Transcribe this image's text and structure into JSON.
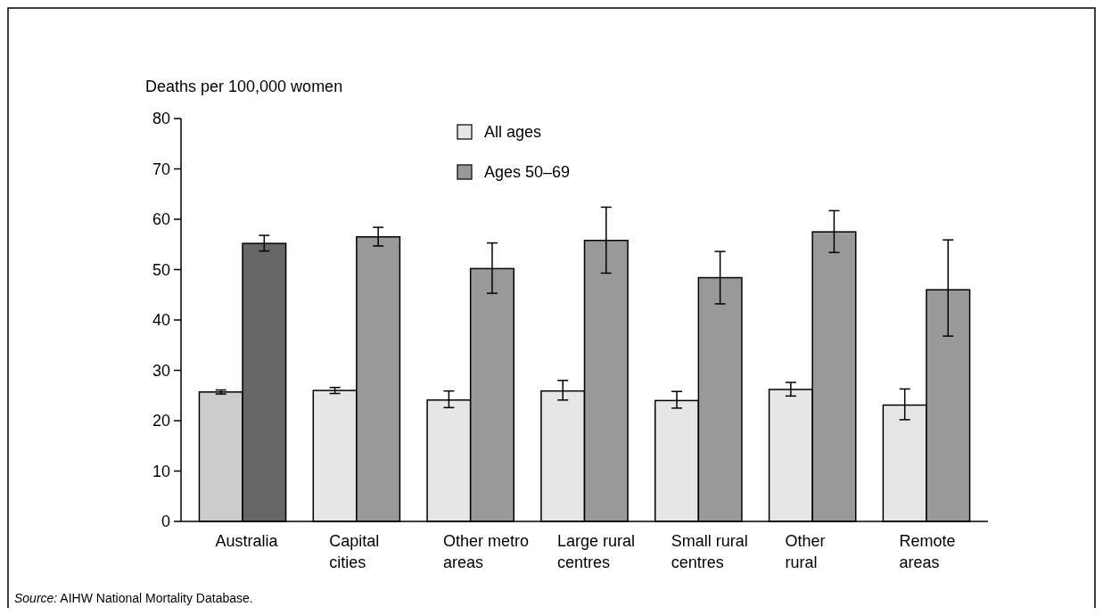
{
  "chart_data": {
    "type": "bar",
    "ylabel": "Deaths per 100,000 women",
    "categories": [
      "Australia",
      "Capital\ncities",
      "Other metro\nareas",
      "Large rural\ncentres",
      "Small rural\ncentres",
      "Other\nrural",
      "Remote\nareas"
    ],
    "series": [
      {
        "name": "All ages",
        "color": "#e6e6e6",
        "colors": [
          "#cccccc",
          "#e6e6e6",
          "#e6e6e6",
          "#e6e6e6",
          "#e6e6e6",
          "#e6e6e6",
          "#e6e6e6"
        ],
        "values": [
          25.7,
          26.0,
          24.1,
          25.9,
          24.0,
          26.2,
          23.1
        ],
        "errors": [
          [
            25.3,
            26.1
          ],
          [
            25.4,
            26.6
          ],
          [
            22.6,
            25.9
          ],
          [
            24.1,
            28.0
          ],
          [
            22.5,
            25.8
          ],
          [
            24.9,
            27.6
          ],
          [
            20.2,
            26.3
          ]
        ]
      },
      {
        "name": "Ages 50–69",
        "color": "#999999",
        "colors": [
          "#666666",
          "#999999",
          "#999999",
          "#999999",
          "#999999",
          "#999999",
          "#999999"
        ],
        "values": [
          55.2,
          56.5,
          50.2,
          55.8,
          48.4,
          57.5,
          46.0
        ],
        "errors": [
          [
            53.7,
            56.8
          ],
          [
            54.7,
            58.4
          ],
          [
            45.3,
            55.3
          ],
          [
            49.3,
            62.4
          ],
          [
            43.2,
            53.6
          ],
          [
            53.4,
            61.7
          ],
          [
            36.8,
            55.9
          ]
        ]
      }
    ],
    "ylim": [
      0,
      80
    ],
    "yticks": [
      0,
      10,
      20,
      30,
      40,
      50,
      60,
      70,
      80
    ],
    "grid": false,
    "legend": "top",
    "annotations": [
      "Source: AIHW National Mortality Database."
    ]
  }
}
